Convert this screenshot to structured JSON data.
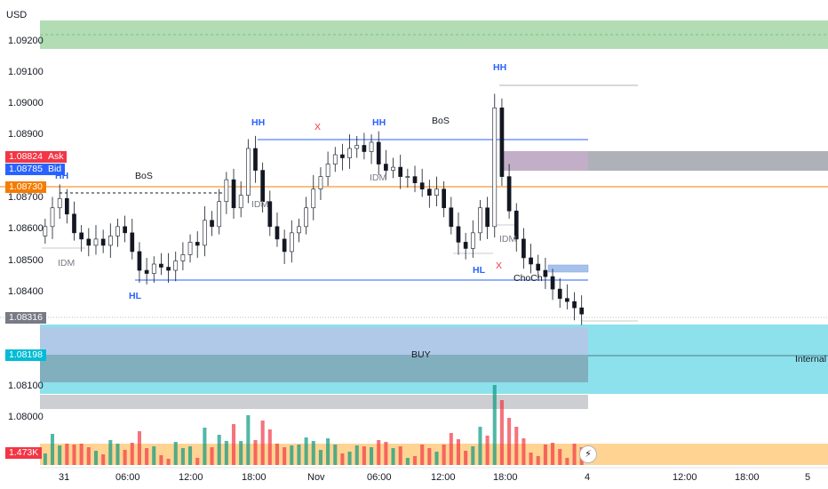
{
  "header": {
    "currency": "USD"
  },
  "y_axis": {
    "ticks": [
      "1.09200",
      "1.09100",
      "1.09000",
      "1.08900",
      "1.08700",
      "1.08600",
      "1.08500",
      "1.08400",
      "1.08100",
      "1.08000"
    ],
    "tick_values": [
      1.092,
      1.091,
      1.09,
      1.089,
      1.087,
      1.086,
      1.085,
      1.084,
      1.081,
      1.08
    ]
  },
  "price_tags": {
    "ask": {
      "value": "1.08824",
      "label": "Ask",
      "color": "#f23645"
    },
    "bid": {
      "value": "1.08785",
      "label": "Bid",
      "color": "#2962ff"
    },
    "level": {
      "value": "1.08730",
      "color": "#f57c00"
    },
    "last": {
      "value": "1.08316",
      "color": "#787b86"
    },
    "poc": {
      "value": "1.08198",
      "color": "#00bcd4"
    },
    "volume": {
      "value": "1.473K",
      "color": "#f23645"
    }
  },
  "x_axis": {
    "ticks": [
      "31",
      "06:00",
      "12:00",
      "18:00",
      "Nov",
      "06:00",
      "12:00",
      "18:00",
      "4",
      "12:00",
      "18:00",
      "5"
    ]
  },
  "annotations": {
    "hh1": "HH",
    "hh2": "HH",
    "hh3": "HH",
    "hh4": "HH",
    "hl1": "HL",
    "hl2": "HL",
    "bos1": "BoS",
    "bos2": "BoS",
    "idm1": "IDM",
    "idm2": "IDM",
    "idm3": "IDM",
    "idm4": "IDM",
    "x1": "X",
    "x2": "X",
    "choch": "ChoCh",
    "buy": "BUY",
    "internal_poc": "Internal PO"
  },
  "colors": {
    "up": "#089981",
    "down": "#f23645",
    "structure": "#2962ff",
    "level": "#f57c00",
    "supply": "#9c7fa6",
    "demand": "#4dd0e1",
    "green_zone": "#a5d6a7"
  },
  "chart_data": {
    "type": "candlestick",
    "instrument_currency": "USD",
    "price_axis_ticks": [
      1.092,
      1.091,
      1.09,
      1.089,
      1.087,
      1.086,
      1.085,
      1.084,
      1.081,
      1.08
    ],
    "time_axis_ticks": [
      "31",
      "06:00",
      "12:00",
      "18:00",
      "Nov",
      "06:00",
      "12:00",
      "18:00",
      "4",
      "12:00",
      "18:00",
      "5"
    ],
    "levels": {
      "ask": 1.08824,
      "bid": 1.08785,
      "horizontal_line": 1.0873,
      "last": 1.08316,
      "poc": 1.08198
    },
    "volume_last": "1.473K",
    "closes": [
      1.086,
      1.0866,
      1.0869,
      1.0864,
      1.0858,
      1.0856,
      1.0854,
      1.0856,
      1.0854,
      1.0857,
      1.086,
      1.0858,
      1.0852,
      1.0846,
      1.0845,
      1.0848,
      1.0847,
      1.0846,
      1.0849,
      1.0851,
      1.0855,
      1.0854,
      1.0862,
      1.086,
      1.0868,
      1.0875,
      1.0866,
      1.087,
      1.0885,
      1.0878,
      1.0868,
      1.086,
      1.0856,
      1.0852,
      1.0858,
      1.086,
      1.0866,
      1.0872,
      1.0876,
      1.088,
      1.0883,
      1.0882,
      1.0885,
      1.0886,
      1.0884,
      1.0887,
      1.088,
      1.0878,
      1.0879,
      1.0876,
      1.0876,
      1.0874,
      1.0872,
      1.087,
      1.0872,
      1.0866,
      1.086,
      1.0855,
      1.0853,
      1.0858,
      1.0866,
      1.086,
      1.0898,
      1.0876,
      1.0865,
      1.0856,
      1.085,
      1.0848,
      1.0846,
      1.0844,
      1.084,
      1.0837,
      1.0836,
      1.0834,
      1.0832
    ]
  }
}
